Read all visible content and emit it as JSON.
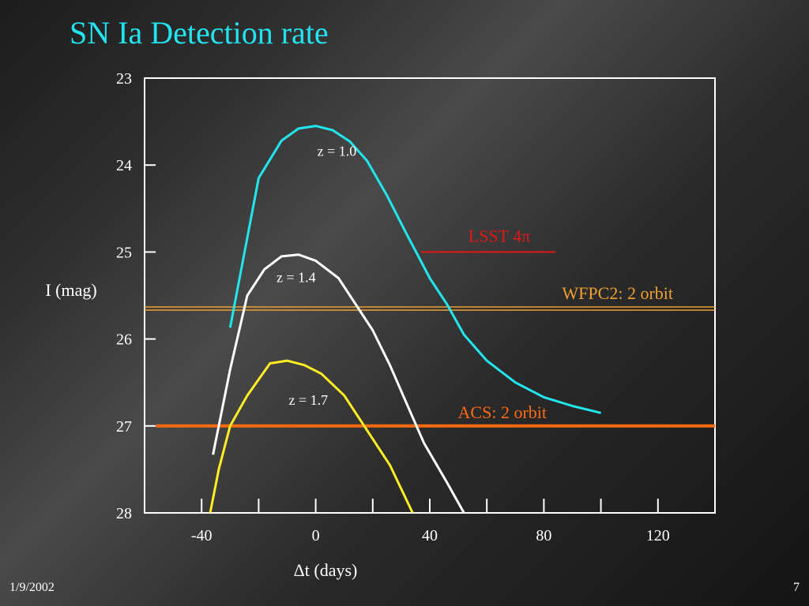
{
  "slide": {
    "title": "SN Ia Detection rate",
    "date": "1/9/2002",
    "page": "7"
  },
  "colors": {
    "title": "#22e3f0",
    "z10": "#22e6ee",
    "z14": "#ffffff",
    "z17": "#ffee22",
    "lsst": "#e01818",
    "wfpc2": "#f0a030",
    "acs": "#ff6a10"
  },
  "chart_data": {
    "type": "line",
    "xlabel": "Δt (days)",
    "ylabel": "I (mag)",
    "xlim": [
      -60,
      140
    ],
    "ylim": [
      28,
      23
    ],
    "y_inverted": true,
    "xticks": [
      -40,
      0,
      40,
      80,
      120
    ],
    "yticks": [
      23,
      24,
      25,
      26,
      27,
      28
    ],
    "series": [
      {
        "name": "z = 1.0",
        "color_key": "z10",
        "points": [
          [
            -30,
            25.87
          ],
          [
            -20,
            24.15
          ],
          [
            -12,
            23.72
          ],
          [
            -6,
            23.58
          ],
          [
            0,
            23.55
          ],
          [
            6,
            23.6
          ],
          [
            12,
            23.73
          ],
          [
            18,
            23.95
          ],
          [
            25,
            24.35
          ],
          [
            32,
            24.8
          ],
          [
            36,
            25.05
          ],
          [
            40,
            25.3
          ],
          [
            46,
            25.6
          ],
          [
            52,
            25.95
          ],
          [
            60,
            26.25
          ],
          [
            70,
            26.5
          ],
          [
            80,
            26.67
          ],
          [
            90,
            26.77
          ],
          [
            100,
            26.85
          ]
        ]
      },
      {
        "name": "z = 1.4",
        "color_key": "z14",
        "points": [
          [
            -36,
            27.33
          ],
          [
            -30,
            26.35
          ],
          [
            -24,
            25.5
          ],
          [
            -18,
            25.2
          ],
          [
            -12,
            25.05
          ],
          [
            -6,
            25.03
          ],
          [
            0,
            25.1
          ],
          [
            8,
            25.3
          ],
          [
            14,
            25.6
          ],
          [
            20,
            25.9
          ],
          [
            26,
            26.3
          ],
          [
            32,
            26.75
          ],
          [
            38,
            27.2
          ],
          [
            46,
            27.65
          ],
          [
            52,
            28.0
          ]
        ]
      },
      {
        "name": "z = 1.7",
        "color_key": "z17",
        "points": [
          [
            -37,
            28.0
          ],
          [
            -34,
            27.5
          ],
          [
            -30,
            27.0
          ],
          [
            -24,
            26.65
          ],
          [
            -16,
            26.28
          ],
          [
            -10,
            26.25
          ],
          [
            -4,
            26.3
          ],
          [
            2,
            26.4
          ],
          [
            10,
            26.65
          ],
          [
            18,
            27.05
          ],
          [
            26,
            27.45
          ],
          [
            34,
            28.0
          ]
        ]
      }
    ],
    "reference_lines": [
      {
        "label": "LSST 4π",
        "y": 25.0,
        "x_range": [
          37,
          84
        ],
        "color_key": "lsst"
      },
      {
        "label": "WFPC2: 2 orbit",
        "y": 25.65,
        "x_range": [
          -60,
          140
        ],
        "color_key": "wfpc2"
      },
      {
        "label": "ACS: 2 orbit",
        "y": 27.0,
        "x_range": [
          -56,
          140
        ],
        "color_key": "acs"
      }
    ]
  }
}
